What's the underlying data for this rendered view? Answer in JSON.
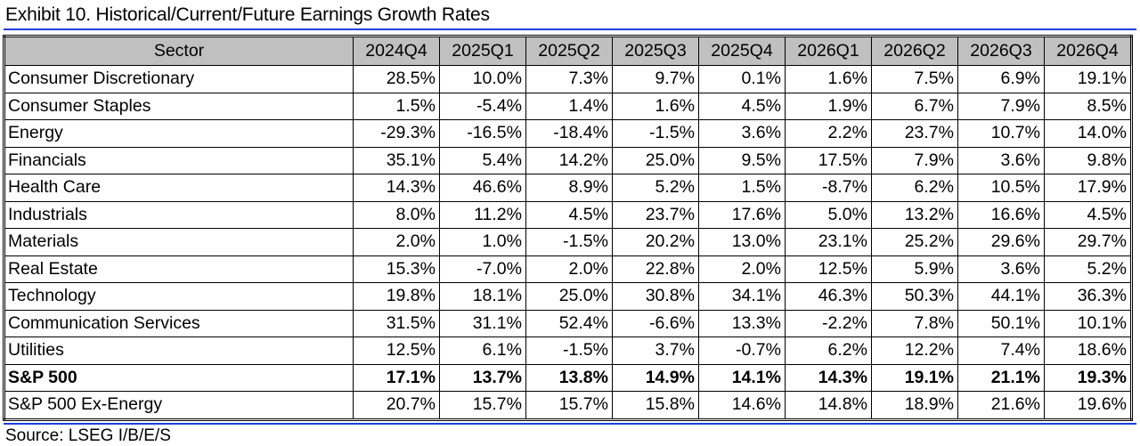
{
  "title": "Exhibit 10. Historical/Current/Future Earnings Growth Rates",
  "table": {
    "headers": [
      "Sector",
      "2024Q4",
      "2025Q1",
      "2025Q2",
      "2025Q3",
      "2025Q4",
      "2026Q1",
      "2026Q2",
      "2026Q3",
      "2026Q4"
    ],
    "rows": [
      {
        "sector": "Consumer Discretionary",
        "values": [
          "28.5%",
          "10.0%",
          "7.3%",
          "9.7%",
          "0.1%",
          "1.6%",
          "7.5%",
          "6.9%",
          "19.1%"
        ]
      },
      {
        "sector": "Consumer Staples",
        "values": [
          "1.5%",
          "-5.4%",
          "1.4%",
          "1.6%",
          "4.5%",
          "1.9%",
          "6.7%",
          "7.9%",
          "8.5%"
        ]
      },
      {
        "sector": "Energy",
        "values": [
          "-29.3%",
          "-16.5%",
          "-18.4%",
          "-1.5%",
          "3.6%",
          "2.2%",
          "23.7%",
          "10.7%",
          "14.0%"
        ]
      },
      {
        "sector": "Financials",
        "values": [
          "35.1%",
          "5.4%",
          "14.2%",
          "25.0%",
          "9.5%",
          "17.5%",
          "7.9%",
          "3.6%",
          "9.8%"
        ]
      },
      {
        "sector": "Health Care",
        "values": [
          "14.3%",
          "46.6%",
          "8.9%",
          "5.2%",
          "1.5%",
          "-8.7%",
          "6.2%",
          "10.5%",
          "17.9%"
        ]
      },
      {
        "sector": "Industrials",
        "values": [
          "8.0%",
          "11.2%",
          "4.5%",
          "23.7%",
          "17.6%",
          "5.0%",
          "13.2%",
          "16.6%",
          "4.5%"
        ]
      },
      {
        "sector": "Materials",
        "values": [
          "2.0%",
          "1.0%",
          "-1.5%",
          "20.2%",
          "13.0%",
          "23.1%",
          "25.2%",
          "29.6%",
          "29.7%"
        ]
      },
      {
        "sector": "Real Estate",
        "values": [
          "15.3%",
          "-7.0%",
          "2.0%",
          "22.8%",
          "2.0%",
          "12.5%",
          "5.9%",
          "3.6%",
          "5.2%"
        ]
      },
      {
        "sector": "Technology",
        "values": [
          "19.8%",
          "18.1%",
          "25.0%",
          "30.8%",
          "34.1%",
          "46.3%",
          "50.3%",
          "44.1%",
          "36.3%"
        ]
      },
      {
        "sector": "Communication Services",
        "values": [
          "31.5%",
          "31.1%",
          "52.4%",
          "-6.6%",
          "13.3%",
          "-2.2%",
          "7.8%",
          "50.1%",
          "10.1%"
        ]
      },
      {
        "sector": "Utilities",
        "values": [
          "12.5%",
          "6.1%",
          "-1.5%",
          "3.7%",
          "-0.7%",
          "6.2%",
          "12.2%",
          "7.4%",
          "18.6%"
        ]
      },
      {
        "sector": "S&P 500",
        "bold": true,
        "values": [
          "17.1%",
          "13.7%",
          "13.8%",
          "14.9%",
          "14.1%",
          "14.3%",
          "19.1%",
          "21.1%",
          "19.3%"
        ]
      },
      {
        "sector": "S&P 500 Ex-Energy",
        "values": [
          "20.7%",
          "15.7%",
          "15.7%",
          "15.8%",
          "14.6%",
          "14.8%",
          "18.9%",
          "21.6%",
          "19.6%"
        ]
      }
    ]
  },
  "source": "Source: LSEG I/B/E/S",
  "colors": {
    "rule": "#1a3fe0",
    "header_bg": "#c0c0c0"
  }
}
